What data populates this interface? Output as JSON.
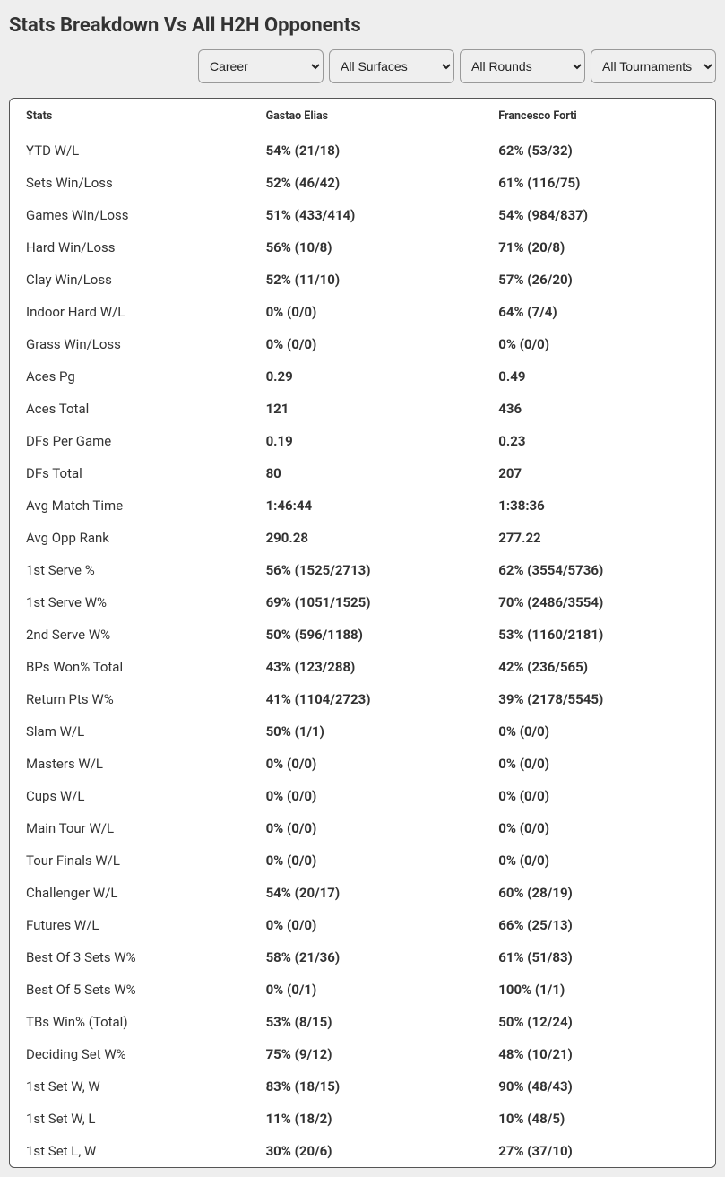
{
  "title": "Stats Breakdown Vs All H2H Opponents",
  "filters": {
    "period": {
      "selected": "Career",
      "options": [
        "Career"
      ]
    },
    "surface": {
      "selected": "All Surfaces",
      "options": [
        "All Surfaces"
      ]
    },
    "round": {
      "selected": "All Rounds",
      "options": [
        "All Rounds"
      ]
    },
    "tour": {
      "selected": "All Tournaments",
      "options": [
        "All Tournaments"
      ]
    }
  },
  "columns": [
    "Stats",
    "Gastao Elias",
    "Francesco Forti"
  ],
  "rows": [
    {
      "stat": "YTD W/L",
      "p1": "54% (21/18)",
      "p2": "62% (53/32)"
    },
    {
      "stat": "Sets Win/Loss",
      "p1": "52% (46/42)",
      "p2": "61% (116/75)"
    },
    {
      "stat": "Games Win/Loss",
      "p1": "51% (433/414)",
      "p2": "54% (984/837)"
    },
    {
      "stat": "Hard Win/Loss",
      "p1": "56% (10/8)",
      "p2": "71% (20/8)"
    },
    {
      "stat": "Clay Win/Loss",
      "p1": "52% (11/10)",
      "p2": "57% (26/20)"
    },
    {
      "stat": "Indoor Hard W/L",
      "p1": "0% (0/0)",
      "p2": "64% (7/4)"
    },
    {
      "stat": "Grass Win/Loss",
      "p1": "0% (0/0)",
      "p2": "0% (0/0)"
    },
    {
      "stat": "Aces Pg",
      "p1": "0.29",
      "p2": "0.49"
    },
    {
      "stat": "Aces Total",
      "p1": "121",
      "p2": "436"
    },
    {
      "stat": "DFs Per Game",
      "p1": "0.19",
      "p2": "0.23"
    },
    {
      "stat": "DFs Total",
      "p1": "80",
      "p2": "207"
    },
    {
      "stat": "Avg Match Time",
      "p1": "1:46:44",
      "p2": "1:38:36"
    },
    {
      "stat": "Avg Opp Rank",
      "p1": "290.28",
      "p2": "277.22"
    },
    {
      "stat": "1st Serve %",
      "p1": "56% (1525/2713)",
      "p2": "62% (3554/5736)"
    },
    {
      "stat": "1st Serve W%",
      "p1": "69% (1051/1525)",
      "p2": "70% (2486/3554)"
    },
    {
      "stat": "2nd Serve W%",
      "p1": "50% (596/1188)",
      "p2": "53% (1160/2181)"
    },
    {
      "stat": "BPs Won% Total",
      "p1": "43% (123/288)",
      "p2": "42% (236/565)"
    },
    {
      "stat": "Return Pts W%",
      "p1": "41% (1104/2723)",
      "p2": "39% (2178/5545)"
    },
    {
      "stat": "Slam W/L",
      "p1": "50% (1/1)",
      "p2": "0% (0/0)"
    },
    {
      "stat": "Masters W/L",
      "p1": "0% (0/0)",
      "p2": "0% (0/0)"
    },
    {
      "stat": "Cups W/L",
      "p1": "0% (0/0)",
      "p2": "0% (0/0)"
    },
    {
      "stat": "Main Tour W/L",
      "p1": "0% (0/0)",
      "p2": "0% (0/0)"
    },
    {
      "stat": "Tour Finals W/L",
      "p1": "0% (0/0)",
      "p2": "0% (0/0)"
    },
    {
      "stat": "Challenger W/L",
      "p1": "54% (20/17)",
      "p2": "60% (28/19)"
    },
    {
      "stat": "Futures W/L",
      "p1": "0% (0/0)",
      "p2": "66% (25/13)"
    },
    {
      "stat": "Best Of 3 Sets W%",
      "p1": "58% (21/36)",
      "p2": "61% (51/83)"
    },
    {
      "stat": "Best Of 5 Sets W%",
      "p1": "0% (0/1)",
      "p2": "100% (1/1)"
    },
    {
      "stat": "TBs Win% (Total)",
      "p1": "53% (8/15)",
      "p2": "50% (12/24)"
    },
    {
      "stat": "Deciding Set W%",
      "p1": "75% (9/12)",
      "p2": "48% (10/21)"
    },
    {
      "stat": "1st Set W, W",
      "p1": "83% (18/15)",
      "p2": "90% (48/43)"
    },
    {
      "stat": "1st Set W, L",
      "p1": "11% (18/2)",
      "p2": "10% (48/5)"
    },
    {
      "stat": "1st Set L, W",
      "p1": "30% (20/6)",
      "p2": "27% (37/10)"
    }
  ],
  "style": {
    "page_bg": "#eeeeee",
    "card_bg": "#ffffff",
    "border_color": "#555555",
    "header_font_size": 12.5,
    "body_font_size": 15,
    "title_font_size": 22
  }
}
